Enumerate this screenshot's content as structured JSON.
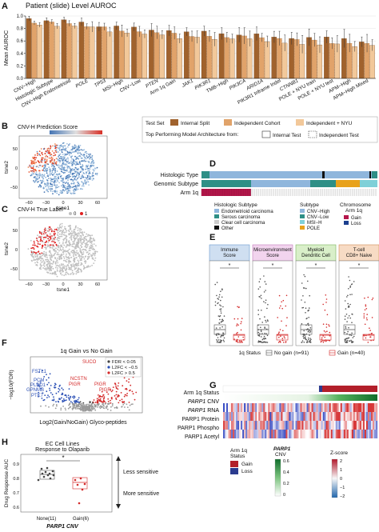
{
  "panels": {
    "A": "A",
    "B": "B",
    "C": "C",
    "D": "D",
    "E": "E",
    "F": "F",
    "G": "G",
    "H": "H"
  },
  "panel_a": {
    "title": "Patient (slide) Level AUROC",
    "ylabel": "Mean AUROC",
    "yticks": [
      "0.0",
      "0.2",
      "0.4",
      "0.6",
      "0.8",
      "1.0"
    ],
    "categories": [
      "CNV−High",
      "Histologic Subtype",
      "CNV−High Endometrioid",
      "POLE",
      "TP53",
      "MSI−High",
      "CNV−Low",
      "PTEN",
      "Arm 1q Gain",
      "JAK1",
      "PIK3R1",
      "TMB−High",
      "PIK3CA",
      "ARID1A",
      "PIK3R1 Inframe Indel",
      "CTNNB1",
      "POLE + NYU train",
      "POLE + NYU test",
      "APM−High",
      "APM−High Mixed"
    ],
    "italic": [
      false,
      false,
      false,
      true,
      true,
      false,
      false,
      true,
      false,
      true,
      true,
      false,
      true,
      true,
      false,
      true,
      false,
      false,
      false,
      false
    ],
    "values": [
      0.96,
      0.95,
      0.93,
      0.9,
      0.85,
      0.83,
      0.82,
      0.8,
      0.76,
      0.75,
      0.73,
      0.72,
      0.71,
      0.7,
      0.68,
      0.67,
      0.66,
      0.64,
      0.63,
      0.61
    ],
    "err": [
      0.04,
      0.04,
      0.06,
      0.07,
      0.08,
      0.08,
      0.08,
      0.09,
      0.1,
      0.1,
      0.1,
      0.11,
      0.11,
      0.11,
      0.11,
      0.12,
      0.12,
      0.13,
      0.13,
      0.13
    ],
    "series": [
      {
        "name": "Internal Split",
        "color": "#a0622d"
      },
      {
        "name": "Independent Cohort",
        "color": "#e1a36a"
      },
      {
        "name": "Independent + NYU",
        "color": "#f2c89a"
      }
    ]
  },
  "legend_a": {
    "test_set_label": "Test Set",
    "series": [
      "Internal Split",
      "Independent Cohort",
      "Independent + NYU"
    ],
    "top_label": "Top Performing Model Architecture from:",
    "internal_test": "Internal Test",
    "independent_test": "Independent Test"
  },
  "panel_b": {
    "title": "CNV-H Prediction Score",
    "scale_ticks": [
      "0.25",
      "0.5",
      "0.75"
    ],
    "xlabel": "tsne1",
    "ylabel": "tsne2",
    "xticks": [
      "−60",
      "−30",
      "0",
      "30",
      "60"
    ],
    "yticks": [
      "−50",
      "0",
      "50"
    ]
  },
  "panel_c": {
    "title": "CNV-H True Label",
    "legend": [
      "0",
      "1"
    ],
    "xlabel": "tsne1",
    "ylabel": "tsne2",
    "xticks": [
      "−60",
      "−30",
      "0",
      "30",
      "60"
    ],
    "yticks": [
      "−50",
      "0",
      "50"
    ]
  },
  "panel_d": {
    "rows": [
      "Histologic Type",
      "Genomic Subtype",
      "Arm 1q"
    ],
    "histologic_title": "Histologic Subtype",
    "histologic_items": [
      {
        "label": "Endometrioid carcinoma",
        "color": "#8fb6dc"
      },
      {
        "label": "Serous carcinoma",
        "color": "#2e8f86"
      },
      {
        "label": "Clear cell carcinoma",
        "color": "#cccccc"
      },
      {
        "label": "Other",
        "color": "#111111"
      }
    ],
    "subtype_title": "Subtype",
    "subtype_items": [
      {
        "label": "CNV−High",
        "color": "#8fb6dc"
      },
      {
        "label": "CNV−Low",
        "color": "#2e8f86"
      },
      {
        "label": "MSI−H",
        "color": "#7fd0d8"
      },
      {
        "label": "POLE",
        "color": "#e8a21c"
      }
    ],
    "chrom_title": "Chromosome\nArm 1q",
    "chrom_items": [
      {
        "label": "Gain",
        "color": "#b5174b"
      },
      {
        "label": "Loss",
        "color": "#1c3f8f"
      }
    ]
  },
  "panel_e": {
    "facets": [
      {
        "title": "Immune\nScore",
        "color": "#cfdff1",
        "border": "#6a9bd0"
      },
      {
        "title": "Microenvironment\nScore",
        "color": "#f2d4ee",
        "border": "#c27bb8"
      },
      {
        "title": "Myeloid\nDendritic Cell",
        "color": "#d9efc9",
        "border": "#7bb35c"
      },
      {
        "title": "T-cell\nCD8+ Naive",
        "color": "#f7dbc4",
        "border": "#d08a54"
      }
    ],
    "sig": "*",
    "status_label": "1q Status",
    "groups": [
      {
        "label": "No gain (n=91)",
        "color": "#555555"
      },
      {
        "label": "Gain (n=40)",
        "color": "#d42a2a"
      }
    ]
  },
  "panel_f": {
    "title": "1q Gain vs No Gain",
    "ylabel": "−log10(FDR)",
    "xlabel": "Log2(Gain/NoGain) Glyco-peptides",
    "legend": [
      "FDR < 0.05",
      "L2FC < −0.5",
      "L2FC > 0.5"
    ],
    "legend_colors": [
      "#444444",
      "#2a4fb5",
      "#d42a2a"
    ],
    "red_labels": [
      "SUCO",
      "NCSTN",
      "PIGR",
      "PIGR",
      "PIGR"
    ],
    "blue_labels": [
      "FSTL1",
      "PCM",
      "PLBD1",
      "GPNMB",
      "PTK7"
    ]
  },
  "panel_g": {
    "rows": [
      "Arm 1q Status",
      "PARP1 CNV",
      "PARP1 RNA",
      "PARP1 Protein",
      "PARP1 Phospho",
      "PARP1 Acetyl"
    ],
    "italic_prefix": [
      false,
      true,
      true,
      false,
      false,
      false
    ],
    "legend_status_title": "Arm 1q\nStatus",
    "legend_status": [
      {
        "label": "Gain",
        "color": "#b21f2a"
      },
      {
        "label": "Loss",
        "color": "#2b3b8f"
      }
    ],
    "legend_cnv_title": "PARP1\nCNV",
    "cnv_ticks": [
      "0.6",
      "0.4",
      "0.2",
      "0"
    ],
    "zscore_title": "Z-score",
    "z_ticks": [
      "2",
      "1",
      "0",
      "−1",
      "−2"
    ]
  },
  "panel_h": {
    "title": "EC Cell Lines\nResponse to Olaparib",
    "ylabel": "Drug Response AUC",
    "yticks": [
      "0.6",
      "0.7",
      "0.8",
      "0.9"
    ],
    "xlabels": [
      "None(11)",
      "Gain(6)"
    ],
    "xtitle": "PARP1 CNV",
    "sig": "*",
    "less": "Less sensitive",
    "more": "More sensitive"
  }
}
